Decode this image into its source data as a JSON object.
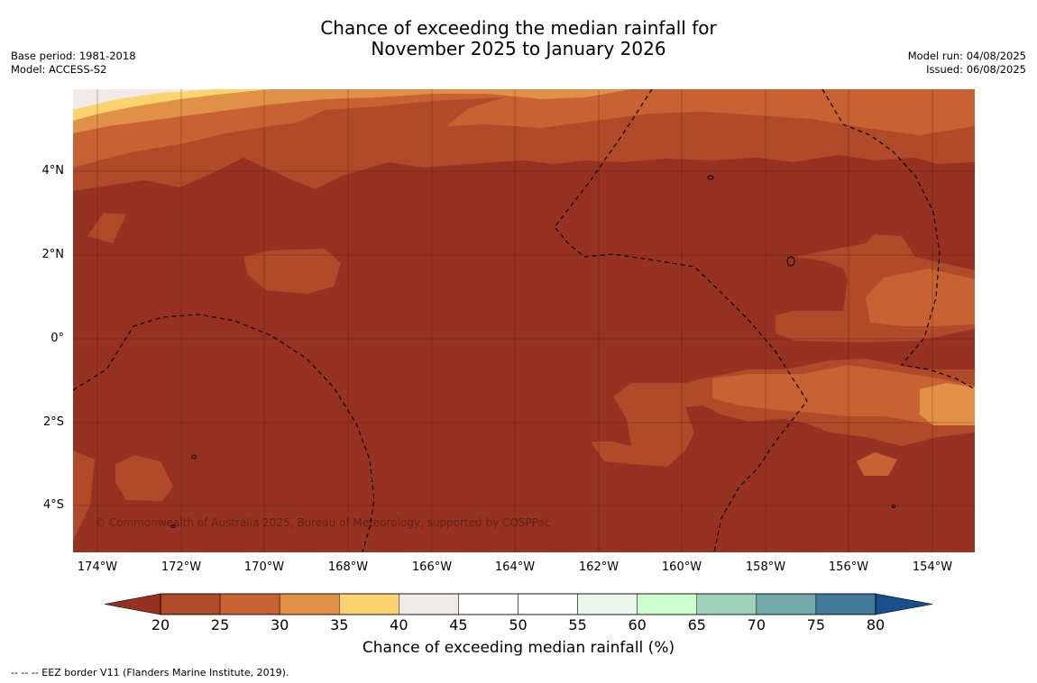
{
  "title_line1": "Chance of exceeding the median rainfall for",
  "title_line2": "November 2025 to January 2026",
  "meta_left": [
    "Base period: 1981-2018",
    "Model: ACCESS-S2"
  ],
  "meta_right": [
    "Model run: 04/08/2025",
    "Issued: 06/08/2025"
  ],
  "copyright": "© Commonwealth of Australia 2025, Bureau of Meteorology, supported by COSPPac",
  "lat_labels": [
    "4°N",
    "2°N",
    "0°",
    "2°S",
    "4°S"
  ],
  "lon_labels": [
    "174°W",
    "172°W",
    "170°W",
    "168°W",
    "166°W",
    "164°W",
    "162°W",
    "160°W",
    "158°W",
    "156°W",
    "154°W"
  ],
  "colorbar": {
    "title": "Chance of exceeding median rainfall (%)",
    "tick_labels": [
      "20",
      "25",
      "30",
      "35",
      "40",
      "45",
      "50",
      "55",
      "60",
      "65",
      "70",
      "75",
      "80"
    ],
    "colors": [
      "#973222",
      "#b04a28",
      "#c96232",
      "#e09147",
      "#fdd36f",
      "#f0ebe6",
      "#ffffff",
      "#ffffff",
      "#ebf7eb",
      "#cdffce",
      "#9ed2b9",
      "#72a8a8",
      "#417a9b",
      "#194f8d"
    ]
  },
  "eez_note": "--  --  -- EEZ border V11 (Flanders Marine Institute, 2019)."
}
